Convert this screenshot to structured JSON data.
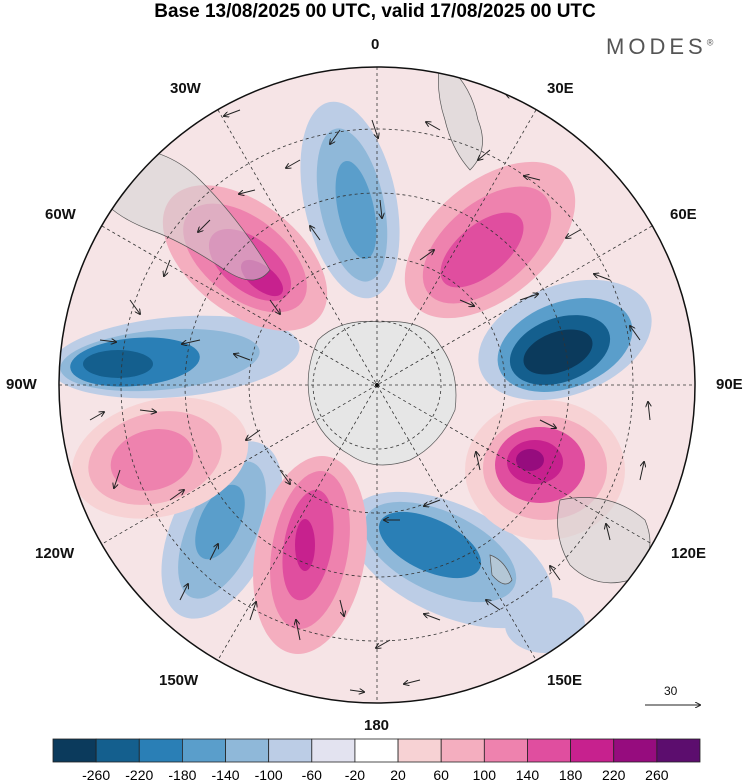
{
  "title": "Base 13/08/2025 00 UTC, valid 17/08/2025 00 UTC",
  "brand": "MODES",
  "brand_mark": "®",
  "longitude_labels": {
    "lon_0": "0",
    "lon_30e": "30E",
    "lon_60e": "60E",
    "lon_90e": "90E",
    "lon_120e": "120E",
    "lon_150e": "150E",
    "lon_180": "180",
    "lon_150w": "150W",
    "lon_120w": "120W",
    "lon_90w": "90W",
    "lon_60w": "60W",
    "lon_30w": "30W"
  },
  "reference_vector": "30",
  "colorbar": {
    "ticks": [
      "-260",
      "-220",
      "-180",
      "-140",
      "-100",
      "-60",
      "-20",
      "20",
      "60",
      "100",
      "140",
      "180",
      "220",
      "260"
    ],
    "colors": [
      "#0b3a5c",
      "#145f8e",
      "#2a7fb6",
      "#5a9ecb",
      "#8fb8d9",
      "#bccde6",
      "#e3e3f0",
      "#ffffff",
      "#f7d2d4",
      "#f4aebf",
      "#ee82ae",
      "#e04e9f",
      "#c7218e",
      "#960c7e",
      "#5c0d6e"
    ]
  }
}
